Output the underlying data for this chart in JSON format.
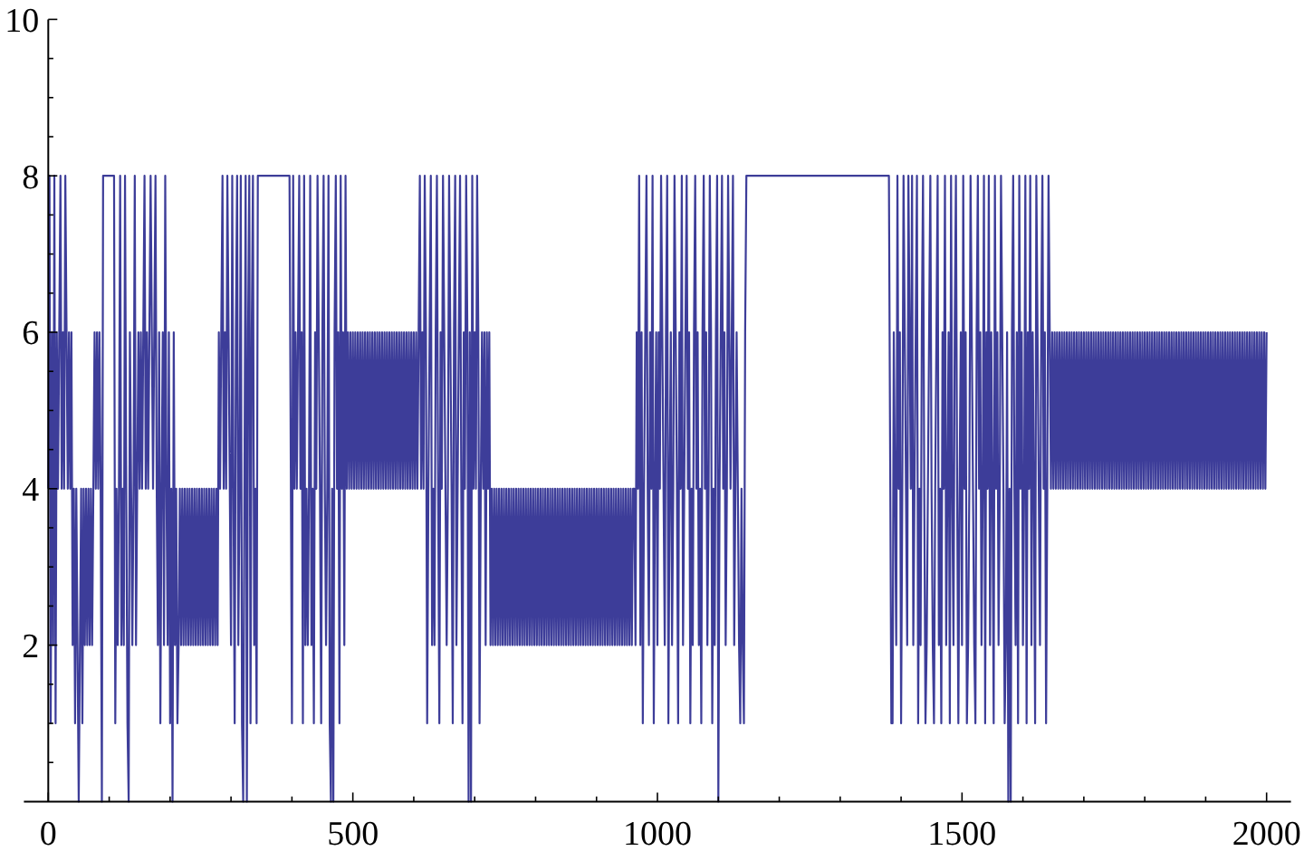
{
  "chart_data": {
    "type": "line",
    "color": "#3d3d99",
    "xlim": [
      -40,
      2040
    ],
    "ylim": [
      0,
      10
    ],
    "xticks": [
      0,
      {
        "value": 100,
        "label": null
      },
      {
        "value": 200,
        "label": null
      },
      {
        "value": 300,
        "label": null
      },
      {
        "value": 400,
        "label": null
      },
      500,
      {
        "value": 600,
        "label": null
      },
      {
        "value": 700,
        "label": null
      },
      {
        "value": 800,
        "label": null
      },
      {
        "value": 900,
        "label": null
      },
      1000,
      {
        "value": 1100,
        "label": null
      },
      {
        "value": 1200,
        "label": null
      },
      {
        "value": 1300,
        "label": null
      },
      {
        "value": 1400,
        "label": null
      },
      1500,
      {
        "value": 1600,
        "label": null
      },
      {
        "value": 1700,
        "label": null
      },
      {
        "value": 1800,
        "label": null
      },
      {
        "value": 1900,
        "label": null
      },
      2000
    ],
    "yticks": [
      {
        "value": 0.5,
        "label": null
      },
      {
        "value": 1,
        "label": null
      },
      {
        "value": 1.5,
        "label": null
      },
      2,
      {
        "value": 2.5,
        "label": null
      },
      {
        "value": 3,
        "label": null
      },
      {
        "value": 3.5,
        "label": null
      },
      4,
      {
        "value": 4.5,
        "label": null
      },
      {
        "value": 5,
        "label": null
      },
      {
        "value": 5.5,
        "label": null
      },
      6,
      {
        "value": 6.5,
        "label": null
      },
      {
        "value": 7,
        "label": null
      },
      {
        "value": 7.5,
        "label": null
      },
      8,
      {
        "value": 8.5,
        "label": null
      },
      {
        "value": 9,
        "label": null
      },
      {
        "value": 9.5,
        "label": null
      },
      10
    ],
    "x": [
      0,
      2,
      4,
      6,
      8,
      10,
      12,
      14,
      16,
      18,
      20,
      22,
      24,
      26,
      28,
      30,
      32,
      34,
      36,
      38,
      40,
      42,
      44,
      46,
      48,
      50,
      52,
      54,
      56,
      58,
      60,
      62,
      64,
      66,
      68,
      70,
      72,
      74,
      76,
      78,
      80,
      82,
      84,
      86,
      88,
      90,
      108,
      110,
      112,
      114,
      116,
      118,
      120,
      122,
      124,
      126,
      128,
      130,
      132,
      134,
      136,
      138,
      140,
      142,
      144,
      146,
      148,
      150,
      152,
      154,
      156,
      158,
      160,
      162,
      164,
      166,
      168,
      170,
      172,
      174,
      176,
      178,
      180,
      182,
      184,
      186,
      188,
      190,
      192,
      194,
      196,
      198,
      200,
      202,
      204,
      206,
      208,
      210,
      212,
      214,
      216,
      218,
      220,
      222,
      224,
      226,
      228,
      230,
      232,
      234,
      236,
      238,
      240,
      242,
      244,
      246,
      248,
      250,
      252,
      254,
      256,
      258,
      260,
      262,
      264,
      266,
      268,
      270,
      272,
      274,
      276,
      278,
      280,
      282,
      284,
      286,
      288,
      290,
      292,
      294,
      296,
      298,
      300,
      302,
      304,
      306,
      308,
      310,
      312,
      314,
      316,
      318,
      320,
      322,
      324,
      326,
      328,
      330,
      332,
      334,
      336,
      338,
      340,
      342,
      344,
      396,
      400,
      402,
      404,
      406,
      408,
      410,
      412,
      414,
      416,
      418,
      420,
      422,
      424,
      426,
      428,
      430,
      432,
      434,
      436,
      438,
      440,
      442,
      444,
      446,
      448,
      450,
      452,
      454,
      456,
      458,
      460,
      462,
      464,
      466,
      468,
      470,
      472,
      474,
      476,
      478,
      480,
      482,
      484,
      486,
      488,
      490,
      492,
      494,
      496,
      498,
      500,
      502,
      504,
      506,
      508,
      510,
      512,
      514,
      516,
      518,
      520,
      522,
      524,
      526,
      528,
      530,
      532,
      534,
      536,
      538,
      540,
      542,
      544,
      546,
      548,
      550,
      552,
      554,
      556,
      558,
      560,
      562,
      564,
      566,
      568,
      570,
      572,
      574,
      576,
      578,
      580,
      582,
      584,
      586,
      588,
      590,
      592,
      594,
      596,
      598,
      600,
      602,
      604,
      606,
      608,
      610,
      612,
      614,
      616,
      618,
      620,
      622,
      624,
      626,
      628,
      630,
      632,
      634,
      636,
      638,
      640,
      642,
      644,
      646,
      648,
      650,
      652,
      654,
      656,
      658,
      660,
      662,
      664,
      666,
      668,
      670,
      672,
      674,
      676,
      678,
      680,
      682,
      684,
      686,
      688,
      690,
      692,
      694,
      696,
      698,
      700,
      702,
      704,
      706,
      708,
      710,
      712,
      714,
      716,
      718,
      720,
      722,
      724,
      726,
      728,
      730,
      732,
      734,
      736,
      738,
      740,
      742,
      744,
      746,
      748,
      750,
      752,
      754,
      756,
      758,
      760,
      762,
      764,
      766,
      768,
      770,
      772,
      774,
      776,
      778,
      780,
      782,
      784,
      786,
      788,
      790,
      792,
      794,
      796,
      798,
      800,
      802,
      804,
      806,
      808,
      810,
      812,
      814,
      816,
      818,
      820,
      822,
      824,
      826,
      828,
      830,
      832,
      834,
      836,
      838,
      840,
      842,
      844,
      846,
      848,
      850,
      852,
      854,
      856,
      858,
      860,
      862,
      864,
      866,
      868,
      870,
      872,
      874,
      876,
      878,
      880,
      882,
      884,
      886,
      888,
      890,
      892,
      894,
      896,
      898,
      900,
      902,
      904,
      906,
      908,
      910,
      912,
      914,
      916,
      918,
      920,
      922,
      924,
      926,
      928,
      930,
      932,
      934,
      936,
      938,
      940,
      942,
      944,
      946,
      948,
      950,
      952,
      954,
      956,
      958,
      960,
      962,
      964,
      966,
      968,
      970,
      972,
      974,
      976,
      978,
      980,
      982,
      984,
      986,
      988,
      990,
      992,
      994,
      996,
      998,
      1000,
      1002,
      1004,
      1006,
      1008,
      1010,
      1012,
      1014,
      1016,
      1018,
      1020,
      1022,
      1024,
      1026,
      1028,
      1030,
      1032,
      1034,
      1036,
      1038,
      1040,
      1042,
      1044,
      1046,
      1048,
      1050,
      1052,
      1054,
      1056,
      1058,
      1060,
      1062,
      1064,
      1066,
      1068,
      1070,
      1072,
      1074,
      1076,
      1078,
      1080,
      1082,
      1084,
      1086,
      1088,
      1090,
      1092,
      1094,
      1096,
      1098,
      1100,
      1102,
      1104,
      1106,
      1108,
      1110,
      1112,
      1114,
      1116,
      1118,
      1120,
      1122,
      1124,
      1126,
      1128,
      1130,
      1132,
      1134,
      1136,
      1138,
      1140,
      1142,
      1144,
      1146,
      1380,
      1384,
      1386,
      1388,
      1390,
      1392,
      1394,
      1396,
      1398,
      1400,
      1402,
      1404,
      1406,
      1408,
      1410,
      1412,
      1414,
      1416,
      1418,
      1420,
      1422,
      1424,
      1426,
      1428,
      1430,
      1432,
      1434,
      1436,
      1438,
      1440,
      1442,
      1444,
      1446,
      1448,
      1450,
      1452,
      1454,
      1456,
      1458,
      1460,
      1462,
      1464,
      1466,
      1468,
      1470,
      1472,
      1474,
      1476,
      1478,
      1480,
      1482,
      1484,
      1486,
      1488,
      1490,
      1492,
      1494,
      1496,
      1498,
      1500,
      1502,
      1504,
      1506,
      1508,
      1510,
      1512,
      1514,
      1516,
      1518,
      1520,
      1522,
      1524,
      1526,
      1528,
      1530,
      1532,
      1534,
      1536,
      1538,
      1540,
      1542,
      1544,
      1546,
      1548,
      1550,
      1552,
      1554,
      1556,
      1558,
      1560,
      1562,
      1564,
      1566,
      1568,
      1570,
      1572,
      1574,
      1576,
      1578,
      1580,
      1582,
      1584,
      1586,
      1588,
      1590,
      1592,
      1594,
      1596,
      1598,
      1600,
      1602,
      1604,
      1606,
      1608,
      1610,
      1612,
      1614,
      1616,
      1618,
      1620,
      1622,
      1624,
      1626,
      1628,
      1630,
      1632,
      1634,
      1636,
      1638,
      1640,
      1642,
      1644,
      1646,
      1648,
      1650,
      1652,
      1654,
      1656,
      1658,
      1660,
      1662,
      1664,
      1666,
      1668,
      1670,
      1672,
      1674,
      1676,
      1678,
      1680,
      1682,
      1684,
      1686,
      1688,
      1690,
      1692,
      1694,
      1696,
      1698,
      1700,
      1702,
      1704,
      1706,
      1708,
      1710,
      1712,
      1714,
      1716,
      1718,
      1720,
      1722,
      1724,
      1726,
      1728,
      1730,
      1732,
      1734,
      1736,
      1738,
      1740,
      1742,
      1744,
      1746,
      1748,
      1750,
      1752,
      1754,
      1756,
      1758,
      1760,
      1762,
      1764,
      1766,
      1768,
      1770,
      1772,
      1774,
      1776,
      1778,
      1780,
      1782,
      1784,
      1786,
      1788,
      1790,
      1792,
      1794,
      1796,
      1798,
      1800,
      1802,
      1804,
      1806,
      1808,
      1810,
      1812,
      1814,
      1816,
      1818,
      1820,
      1822,
      1824,
      1826,
      1828,
      1830,
      1832,
      1834,
      1836,
      1838,
      1840,
      1842,
      1844,
      1846,
      1848,
      1850,
      1852,
      1854,
      1856,
      1858,
      1860,
      1862,
      1864,
      1866,
      1868,
      1870,
      1872,
      1874,
      1876,
      1878,
      1880,
      1882,
      1884,
      1886,
      1888,
      1890,
      1892,
      1894,
      1896,
      1898,
      1900,
      1902,
      1904,
      1906,
      1908,
      1910,
      1912,
      1914,
      1916,
      1918,
      1920,
      1922,
      1924,
      1926,
      1928,
      1930,
      1932,
      1934,
      1936,
      1938,
      1940,
      1942,
      1944,
      1946,
      1948,
      1950,
      1952,
      1954,
      1956,
      1958,
      1960,
      1962,
      1964,
      1966,
      1968,
      1970,
      1972,
      1974,
      1976,
      1978,
      1980,
      1982,
      1984,
      1986,
      1988,
      1990,
      1992,
      1994,
      1996,
      1998,
      2000
    ],
    "values": [
      4,
      8,
      1,
      6,
      2,
      8,
      1,
      6,
      4,
      6,
      8,
      4,
      6,
      4,
      8,
      6,
      4,
      6,
      4,
      6,
      2,
      4,
      1,
      4,
      2,
      0,
      2,
      4,
      1,
      4,
      2,
      4,
      2,
      4,
      2,
      4,
      2,
      4,
      6,
      4,
      6,
      4,
      6,
      4,
      0,
      8,
      8,
      1,
      4,
      2,
      4,
      8,
      2,
      4,
      2,
      8,
      4,
      1,
      0,
      6,
      4,
      2,
      4,
      8,
      2,
      4,
      6,
      4,
      6,
      4,
      6,
      8,
      4,
      6,
      4,
      6,
      8,
      6,
      4,
      6,
      8,
      4,
      2,
      6,
      1,
      4,
      6,
      2,
      8,
      4,
      2,
      6,
      1,
      4,
      0,
      6,
      2,
      4,
      1,
      2,
      4,
      2,
      4,
      2,
      4,
      2,
      4,
      2,
      4,
      2,
      4,
      2,
      4,
      2,
      4,
      2,
      4,
      2,
      4,
      2,
      4,
      2,
      4,
      2,
      4,
      2,
      4,
      2,
      4,
      2,
      4,
      2,
      6,
      4,
      6,
      8,
      4,
      6,
      4,
      8,
      6,
      4,
      2,
      8,
      4,
      1,
      6,
      8,
      2,
      4,
      8,
      1,
      0,
      4,
      8,
      0,
      6,
      8,
      1,
      6,
      8,
      2,
      4,
      1,
      8,
      8,
      1,
      8,
      4,
      6,
      4,
      6,
      8,
      4,
      6,
      1,
      8,
      2,
      4,
      2,
      4,
      8,
      2,
      4,
      1,
      6,
      4,
      8,
      6,
      4,
      1,
      6,
      8,
      4,
      2,
      4,
      8,
      1,
      0,
      4,
      0,
      6,
      8,
      4,
      6,
      1,
      8,
      4,
      6,
      2,
      8,
      4,
      6,
      4,
      6,
      4,
      6,
      4,
      6,
      4,
      6,
      4,
      6,
      4,
      6,
      4,
      6,
      4,
      6,
      4,
      6,
      4,
      6,
      4,
      6,
      4,
      6,
      4,
      6,
      4,
      6,
      4,
      6,
      4,
      6,
      4,
      6,
      4,
      6,
      4,
      6,
      4,
      6,
      4,
      6,
      4,
      6,
      4,
      6,
      4,
      6,
      4,
      6,
      4,
      6,
      4,
      6,
      4,
      6,
      4,
      6,
      8,
      4,
      6,
      4,
      8,
      6,
      1,
      4,
      6,
      8,
      2,
      4,
      2,
      6,
      8,
      4,
      1,
      6,
      4,
      8,
      6,
      4,
      2,
      4,
      8,
      6,
      4,
      1,
      6,
      8,
      2,
      4,
      6,
      8,
      4,
      1,
      6,
      4,
      8,
      6,
      0,
      6,
      0,
      8,
      4,
      6,
      4,
      8,
      6,
      1,
      4,
      6,
      4,
      6,
      2,
      6,
      4,
      6,
      2,
      4,
      2,
      4,
      2,
      4,
      2,
      4,
      2,
      4,
      2,
      4,
      2,
      4,
      2,
      4,
      2,
      4,
      2,
      4,
      2,
      4,
      2,
      4,
      2,
      4,
      2,
      4,
      2,
      4,
      2,
      4,
      2,
      4,
      2,
      4,
      2,
      4,
      2,
      4,
      2,
      4,
      2,
      4,
      2,
      4,
      2,
      4,
      2,
      4,
      2,
      4,
      2,
      4,
      2,
      4,
      2,
      4,
      2,
      4,
      2,
      4,
      2,
      4,
      2,
      4,
      2,
      4,
      2,
      4,
      2,
      4,
      2,
      4,
      2,
      4,
      2,
      4,
      2,
      4,
      2,
      4,
      2,
      4,
      2,
      4,
      2,
      4,
      2,
      4,
      2,
      4,
      2,
      4,
      2,
      4,
      2,
      4,
      2,
      4,
      2,
      4,
      2,
      4,
      2,
      4,
      2,
      4,
      2,
      4,
      2,
      4,
      2,
      4,
      2,
      4,
      2,
      4,
      4,
      2,
      6,
      4,
      8,
      2,
      6,
      1,
      4,
      6,
      8,
      4,
      2,
      6,
      4,
      8,
      1,
      4,
      6,
      2,
      6,
      4,
      8,
      6,
      4,
      2,
      6,
      8,
      1,
      4,
      6,
      2,
      4,
      8,
      6,
      4,
      1,
      6,
      4,
      8,
      2,
      4,
      6,
      8,
      4,
      6,
      1,
      4,
      2,
      6,
      8,
      4,
      6,
      2,
      4,
      1,
      6,
      8,
      4,
      6,
      2,
      4,
      8,
      6,
      1,
      4,
      2,
      6,
      8,
      0,
      4,
      6,
      8,
      4,
      6,
      2,
      4,
      8,
      6,
      4,
      6,
      8,
      2,
      4,
      6,
      4,
      2,
      1,
      4,
      2,
      1,
      6,
      8,
      8,
      1,
      1,
      6,
      4,
      2,
      8,
      4,
      6,
      1,
      4,
      8,
      6,
      4,
      2,
      8,
      6,
      4,
      8,
      2,
      4,
      6,
      8,
      1,
      4,
      2,
      6,
      8,
      4,
      1,
      2,
      4,
      6,
      8,
      4,
      2,
      1,
      4,
      6,
      8,
      2,
      4,
      1,
      6,
      4,
      8,
      2,
      4,
      6,
      1,
      8,
      4,
      2,
      6,
      8,
      4,
      1,
      4,
      6,
      2,
      8,
      4,
      6,
      1,
      2,
      4,
      8,
      6,
      4,
      2,
      1,
      6,
      8,
      4,
      6,
      2,
      4,
      8,
      1,
      6,
      4,
      8,
      2,
      6,
      4,
      1,
      8,
      4,
      6,
      2,
      4,
      8,
      6,
      4,
      1,
      2,
      6,
      0,
      4,
      0,
      6,
      8,
      4,
      2,
      6,
      1,
      8,
      4,
      6,
      2,
      4,
      8,
      1,
      6,
      4,
      8,
      2,
      6,
      4,
      1,
      8,
      6,
      4,
      2,
      6,
      8,
      4,
      6,
      1,
      4,
      8,
      6,
      4,
      6,
      4,
      6,
      4,
      6,
      4,
      6,
      4,
      6,
      4,
      6,
      4,
      6,
      4,
      6,
      4,
      6,
      4,
      6,
      4,
      6,
      4,
      6,
      4,
      6,
      4,
      6,
      4,
      6,
      4,
      6,
      4,
      6,
      4,
      6,
      4,
      6,
      4,
      6,
      4,
      6,
      4,
      6,
      4,
      6,
      4,
      6,
      4,
      6,
      4,
      6,
      4,
      6,
      4,
      6,
      4,
      6,
      4,
      6,
      4,
      6,
      4,
      6,
      4,
      6,
      4,
      6,
      4,
      6,
      4,
      6,
      4,
      6,
      4,
      6,
      4,
      6,
      4,
      6,
      4,
      6,
      4,
      6,
      4,
      6,
      4,
      6,
      4,
      6,
      4,
      6,
      4,
      6,
      4,
      6,
      4,
      6,
      4,
      6,
      4,
      6,
      4,
      6,
      4,
      6,
      4,
      6,
      4,
      6,
      4,
      6,
      4,
      6,
      4,
      6,
      4,
      6,
      4,
      6,
      4,
      6,
      4,
      6,
      4,
      6,
      4,
      6,
      4,
      6,
      4,
      6,
      4,
      6,
      4,
      6,
      4,
      6,
      4,
      6,
      4,
      6,
      4,
      6,
      4,
      6,
      4,
      6,
      4,
      6,
      4,
      6,
      4,
      6,
      4,
      6,
      4,
      6,
      4,
      6,
      4,
      6,
      4,
      6,
      4,
      6,
      4,
      6,
      4,
      6,
      4,
      6,
      4,
      6,
      4,
      6,
      4,
      6
    ]
  }
}
